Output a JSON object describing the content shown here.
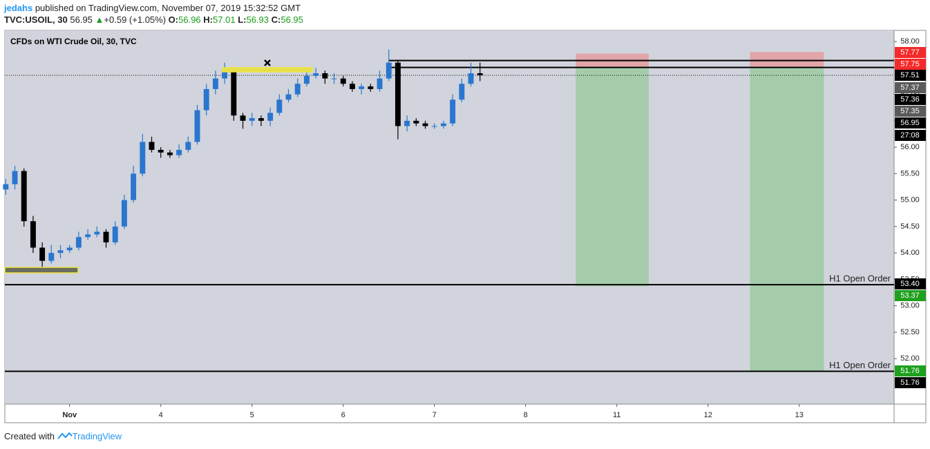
{
  "header": {
    "author": "jedahs",
    "published": "published on TradingView.com, November 07, 2019 15:32:52 GMT",
    "symbol": "TVC:USOIL, 30",
    "last": "56.95",
    "arrow": "▲",
    "change": "+0.59 (+1.05%)",
    "ohlc": [
      {
        "key": "O:",
        "value": "56.96"
      },
      {
        "key": "H:",
        "value": "57.01"
      },
      {
        "key": "L:",
        "value": "56.93"
      },
      {
        "key": "C:",
        "value": "56.95"
      }
    ]
  },
  "chart_data": {
    "type": "candlestick",
    "title": "CFDs on WTI Crude Oil, 30, TVC",
    "x": [
      -0.7,
      -0.6,
      -0.5,
      -0.4,
      -0.3,
      -0.2,
      -0.1,
      0.0,
      0.1,
      0.2,
      0.3,
      0.4,
      0.5,
      0.6,
      0.7,
      0.8,
      0.9,
      1.0,
      1.1,
      1.2,
      1.3,
      1.4,
      1.5,
      1.6,
      1.7,
      1.8,
      1.9,
      2.0,
      2.1,
      2.2,
      2.3,
      2.4,
      2.5,
      2.6,
      2.7,
      2.8,
      2.9,
      3.0,
      3.1,
      3.2,
      3.3,
      3.4,
      3.5,
      3.6,
      3.7,
      3.8,
      3.9,
      4.0,
      4.1,
      4.2,
      4.3,
      4.4,
      4.5
    ],
    "open": [
      55.2,
      55.3,
      55.55,
      54.6,
      54.1,
      53.85,
      54.0,
      54.05,
      54.1,
      54.3,
      54.35,
      54.4,
      54.2,
      54.5,
      55.0,
      55.5,
      56.1,
      55.95,
      55.9,
      55.85,
      55.95,
      56.1,
      56.7,
      57.1,
      57.3,
      57.45,
      56.6,
      56.5,
      56.55,
      56.5,
      56.65,
      56.9,
      57.0,
      57.2,
      57.35,
      57.4,
      57.3,
      57.3,
      57.2,
      57.1,
      57.15,
      57.1,
      57.3,
      57.6,
      56.4,
      56.5,
      56.45,
      56.4,
      56.4,
      56.45,
      56.9,
      57.2,
      57.4
    ],
    "high": [
      55.4,
      55.65,
      55.6,
      54.7,
      54.2,
      54.15,
      54.15,
      54.15,
      54.4,
      54.45,
      54.5,
      54.45,
      54.6,
      55.1,
      55.65,
      56.25,
      56.2,
      56.0,
      55.95,
      56.05,
      56.2,
      56.8,
      57.2,
      57.45,
      57.6,
      57.5,
      56.65,
      56.65,
      56.6,
      56.75,
      57.0,
      57.1,
      57.3,
      57.5,
      57.5,
      57.45,
      57.4,
      57.35,
      57.25,
      57.2,
      57.2,
      57.45,
      57.85,
      57.65,
      56.6,
      56.55,
      56.5,
      56.45,
      56.5,
      57.0,
      57.3,
      57.6,
      57.6
    ],
    "low": [
      55.1,
      55.2,
      54.5,
      54.0,
      53.7,
      53.8,
      53.9,
      54.0,
      54.05,
      54.25,
      54.3,
      54.1,
      54.15,
      54.45,
      54.95,
      55.45,
      55.9,
      55.8,
      55.8,
      55.8,
      55.9,
      56.05,
      56.6,
      57.0,
      57.2,
      56.5,
      56.35,
      56.4,
      56.4,
      56.4,
      56.6,
      56.85,
      56.95,
      57.15,
      57.3,
      57.2,
      57.2,
      57.15,
      57.05,
      57.0,
      57.05,
      57.05,
      57.25,
      56.15,
      56.3,
      56.4,
      56.35,
      56.35,
      56.35,
      56.4,
      56.85,
      57.15,
      57.25
    ],
    "close": [
      55.3,
      55.55,
      54.6,
      54.1,
      53.85,
      54.0,
      54.05,
      54.1,
      54.3,
      54.35,
      54.4,
      54.2,
      54.5,
      55.0,
      55.5,
      56.1,
      55.95,
      55.9,
      55.85,
      55.95,
      56.1,
      56.7,
      57.1,
      57.3,
      57.45,
      56.6,
      56.5,
      56.55,
      56.5,
      56.65,
      56.9,
      57.0,
      57.2,
      57.35,
      57.4,
      57.3,
      57.3,
      57.2,
      57.1,
      57.15,
      57.1,
      57.3,
      57.6,
      56.4,
      56.5,
      56.45,
      56.4,
      56.4,
      56.45,
      56.9,
      57.2,
      57.4,
      57.36
    ],
    "up_color": "#2a76cf",
    "down_color": "#000000",
    "xlim": [
      -0.71,
      9.04
    ],
    "xticks": [
      {
        "value": 0,
        "label": "Nov"
      },
      {
        "value": 1,
        "label": "4"
      },
      {
        "value": 2,
        "label": "5"
      },
      {
        "value": 3,
        "label": "6"
      },
      {
        "value": 4,
        "label": "7"
      },
      {
        "value": 5,
        "label": "8"
      },
      {
        "value": 6,
        "label": "11"
      },
      {
        "value": 7,
        "label": "12"
      },
      {
        "value": 8,
        "label": "13"
      }
    ],
    "ylim": [
      51.14,
      58.21
    ],
    "yticks": [
      {
        "value": 52,
        "label": "52.00"
      },
      {
        "value": 52.5,
        "label": "52.50"
      },
      {
        "value": 53,
        "label": "53.00"
      },
      {
        "value": 53.5,
        "label": "53.50"
      },
      {
        "value": 54,
        "label": "54.00"
      },
      {
        "value": 54.5,
        "label": "54.50"
      },
      {
        "value": 55,
        "label": "55.00"
      },
      {
        "value": 55.5,
        "label": "55.50"
      },
      {
        "value": 56,
        "label": "56.00"
      },
      {
        "value": 56.5,
        "label": "56.50"
      },
      {
        "value": 57,
        "label": "57.00"
      },
      {
        "value": 57.5,
        "label": "57.50"
      },
      {
        "value": 58,
        "label": "58.00"
      }
    ],
    "last_line": 57.36,
    "horizontal_lines": [
      {
        "value": 57.64,
        "x_from": 3.5
      },
      {
        "value": 57.51,
        "x_from": 3.5
      },
      {
        "value": 53.4,
        "label": "H1 Open Order"
      },
      {
        "value": 51.76,
        "label": "H1 Open Order"
      }
    ],
    "positions": [
      {
        "x_from": 5.55,
        "x_to": 6.35,
        "stop": 57.77,
        "entry": 57.51,
        "target": 53.37
      },
      {
        "x_from": 7.46,
        "x_to": 8.27,
        "stop": 57.8,
        "entry": 57.51,
        "target": 51.76
      }
    ],
    "price_tags": [
      {
        "label": "57.77",
        "color": "#f52a2a"
      },
      {
        "label": "57.75",
        "color": "#f52a2a"
      },
      {
        "label": "57.51",
        "color": "#000000"
      },
      {
        "label": "57.37",
        "color": "#5a5a5a"
      },
      {
        "label": "57.36",
        "color": "#000000"
      },
      {
        "label": "57.35",
        "color": "#5a5a5a"
      },
      {
        "label": "56.95",
        "color": "#000000"
      },
      {
        "label": "27:08",
        "color": "#000000"
      },
      {
        "label": "53.40",
        "color": "#000000"
      },
      {
        "label": "53.37",
        "color": "#1fa01f"
      },
      {
        "label": "51.76",
        "color": "#1fa01f"
      },
      {
        "label": "51.76",
        "color": "#000000"
      }
    ]
  },
  "footer": {
    "created": "Created with",
    "brand": "TradingView"
  }
}
